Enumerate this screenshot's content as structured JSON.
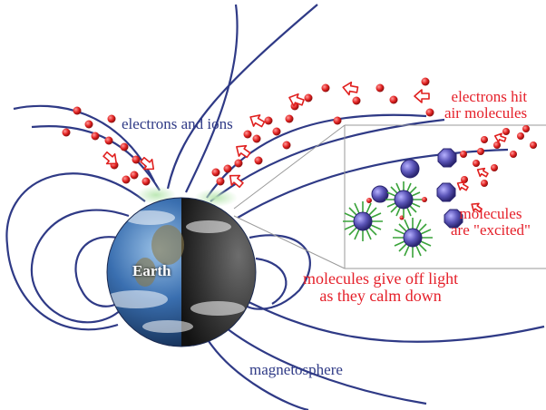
{
  "diagram": {
    "labels": {
      "electrons_and_ions": "electrons and ions",
      "electrons_hit_line1": "electrons hit",
      "electrons_hit_line2": "air molecules",
      "molecules_excited_line1": "molecules",
      "molecules_excited_line2": "are \"excited\"",
      "give_off_line1": "molecules give off light",
      "give_off_line2": "as they calm down",
      "magnetosphere": "magnetosphere",
      "earth": "Earth"
    },
    "colors": {
      "field_lines": "#2f3a86",
      "electrons": "#e0201f",
      "arrows": "#e0201f",
      "excited_molecules": "#5b55b8",
      "glowing_molecules": "#3aa33a",
      "earth_day": "#3a6fb0",
      "earth_night": "#2c2c2c",
      "aurora": "#8fd08a"
    },
    "icons": [
      "earth-globe",
      "field-lines",
      "electron-dots",
      "arrow-icons",
      "molecule-starburst",
      "excited-molecule"
    ]
  }
}
